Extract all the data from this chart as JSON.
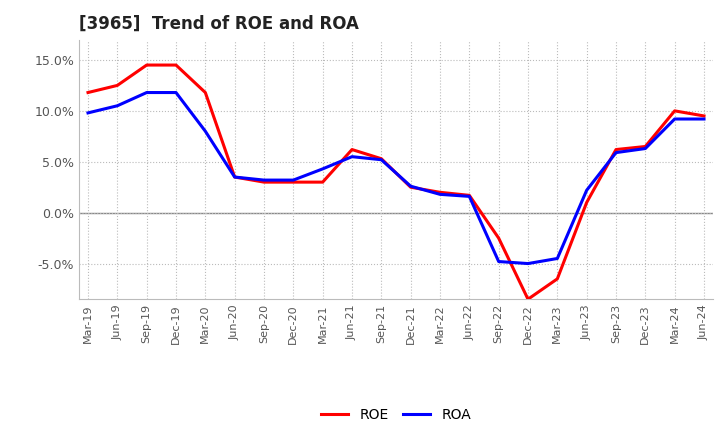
{
  "title": "[3965]  Trend of ROE and ROA",
  "x_labels": [
    "Mar-19",
    "Jun-19",
    "Sep-19",
    "Dec-19",
    "Mar-20",
    "Jun-20",
    "Sep-20",
    "Dec-20",
    "Mar-21",
    "Jun-21",
    "Sep-21",
    "Dec-21",
    "Mar-22",
    "Jun-22",
    "Sep-22",
    "Dec-22",
    "Mar-23",
    "Jun-23",
    "Sep-23",
    "Dec-23",
    "Mar-24",
    "Jun-24"
  ],
  "roe": [
    11.8,
    12.5,
    14.5,
    14.5,
    11.8,
    3.5,
    3.0,
    3.0,
    3.0,
    6.2,
    5.3,
    2.5,
    2.0,
    1.7,
    -2.5,
    -8.5,
    -6.5,
    1.0,
    6.2,
    6.5,
    10.0,
    9.5
  ],
  "roa": [
    9.8,
    10.5,
    11.8,
    11.8,
    8.0,
    3.5,
    3.2,
    3.2,
    4.3,
    5.5,
    5.2,
    2.6,
    1.8,
    1.6,
    -4.8,
    -5.0,
    -4.5,
    2.2,
    5.9,
    6.3,
    9.2,
    9.2
  ],
  "roe_color": "#FF0000",
  "roa_color": "#0000FF",
  "ylim": [
    -8.5,
    17.0
  ],
  "yticks": [
    -5.0,
    0.0,
    5.0,
    10.0,
    15.0
  ],
  "y_label_color": "#555555",
  "background_color": "#FFFFFF",
  "grid_color": "#BBBBBB",
  "line_width": 2.2,
  "title_fontsize": 12,
  "tick_fontsize": 8,
  "ytick_fontsize": 9
}
